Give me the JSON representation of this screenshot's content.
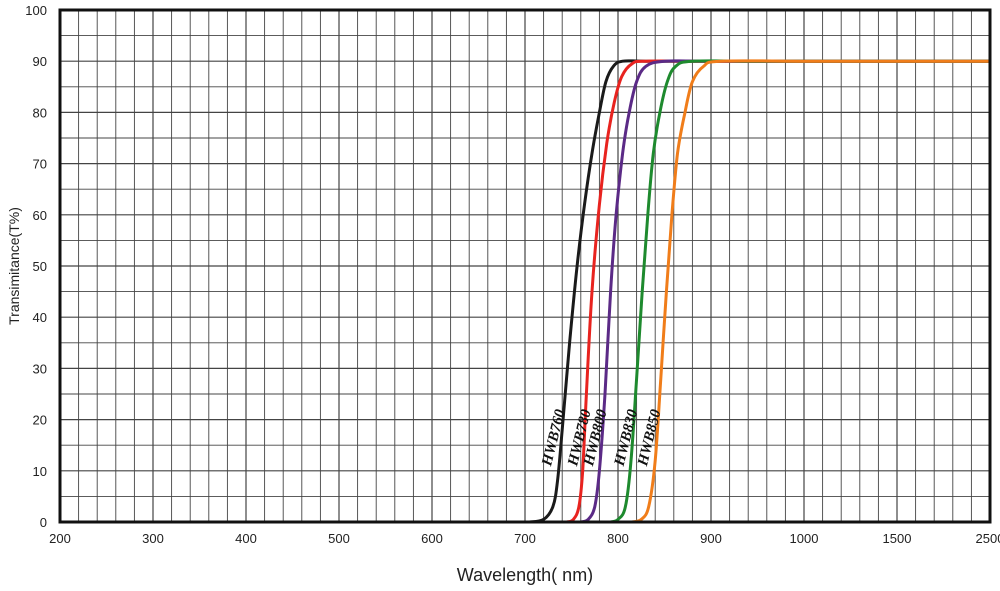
{
  "chart_data": {
    "type": "line",
    "xlabel": "Wavelength( nm)",
    "ylabel": "Transimitance(T%)",
    "x_ticks": [
      "200",
      "300",
      "400",
      "500",
      "600",
      "700",
      "800",
      "900",
      "1000",
      "1500",
      "2500"
    ],
    "y_ticks": [
      "0",
      "10",
      "20",
      "30",
      "40",
      "50",
      "60",
      "70",
      "80",
      "90",
      "100"
    ],
    "ylim": [
      0,
      100
    ],
    "grid": true,
    "legend": "none (series labeled inline near curves)",
    "series": [
      {
        "name": "HWB760",
        "color": "#1a1a1a",
        "points": [
          [
            705,
            0
          ],
          [
            720,
            0.5
          ],
          [
            730,
            3
          ],
          [
            735,
            8
          ],
          [
            740,
            18
          ],
          [
            748,
            35
          ],
          [
            756,
            50
          ],
          [
            764,
            62
          ],
          [
            772,
            72
          ],
          [
            780,
            80
          ],
          [
            787,
            86
          ],
          [
            795,
            89
          ],
          [
            805,
            90
          ],
          [
            830,
            90
          ],
          [
            900,
            90
          ],
          [
            1500,
            90
          ],
          [
            2500,
            90
          ]
        ]
      },
      {
        "name": "HWB780",
        "color": "#e8231f",
        "points": [
          [
            745,
            0
          ],
          [
            752,
            0.5
          ],
          [
            758,
            3
          ],
          [
            762,
            10
          ],
          [
            766,
            25
          ],
          [
            772,
            45
          ],
          [
            780,
            62
          ],
          [
            788,
            74
          ],
          [
            796,
            82
          ],
          [
            804,
            87
          ],
          [
            815,
            89.5
          ],
          [
            830,
            90
          ],
          [
            900,
            90
          ],
          [
            1500,
            90
          ],
          [
            2500,
            90
          ]
        ]
      },
      {
        "name": "HWB800",
        "color": "#5b2a86",
        "points": [
          [
            760,
            0
          ],
          [
            768,
            0.5
          ],
          [
            775,
            3
          ],
          [
            780,
            10
          ],
          [
            786,
            25
          ],
          [
            792,
            45
          ],
          [
            798,
            60
          ],
          [
            805,
            72
          ],
          [
            812,
            80
          ],
          [
            820,
            86
          ],
          [
            830,
            89
          ],
          [
            850,
            90
          ],
          [
            900,
            90
          ],
          [
            1500,
            90
          ],
          [
            2500,
            90
          ]
        ]
      },
      {
        "name": "HWB830",
        "color": "#1e8a2e",
        "points": [
          [
            792,
            0
          ],
          [
            800,
            0.5
          ],
          [
            808,
            3
          ],
          [
            814,
            12
          ],
          [
            820,
            28
          ],
          [
            826,
            45
          ],
          [
            832,
            60
          ],
          [
            838,
            72
          ],
          [
            845,
            80
          ],
          [
            853,
            86
          ],
          [
            862,
            89
          ],
          [
            880,
            90
          ],
          [
            950,
            90
          ],
          [
            1500,
            90
          ],
          [
            2500,
            90
          ]
        ]
      },
      {
        "name": "HWB850",
        "color": "#f07d1a",
        "points": [
          [
            815,
            0
          ],
          [
            825,
            0.5
          ],
          [
            833,
            3
          ],
          [
            840,
            12
          ],
          [
            846,
            28
          ],
          [
            852,
            45
          ],
          [
            858,
            60
          ],
          [
            864,
            72
          ],
          [
            872,
            80
          ],
          [
            880,
            86
          ],
          [
            892,
            89
          ],
          [
            910,
            90
          ],
          [
            1000,
            90
          ],
          [
            1500,
            90
          ],
          [
            2500,
            90
          ]
        ]
      }
    ]
  }
}
